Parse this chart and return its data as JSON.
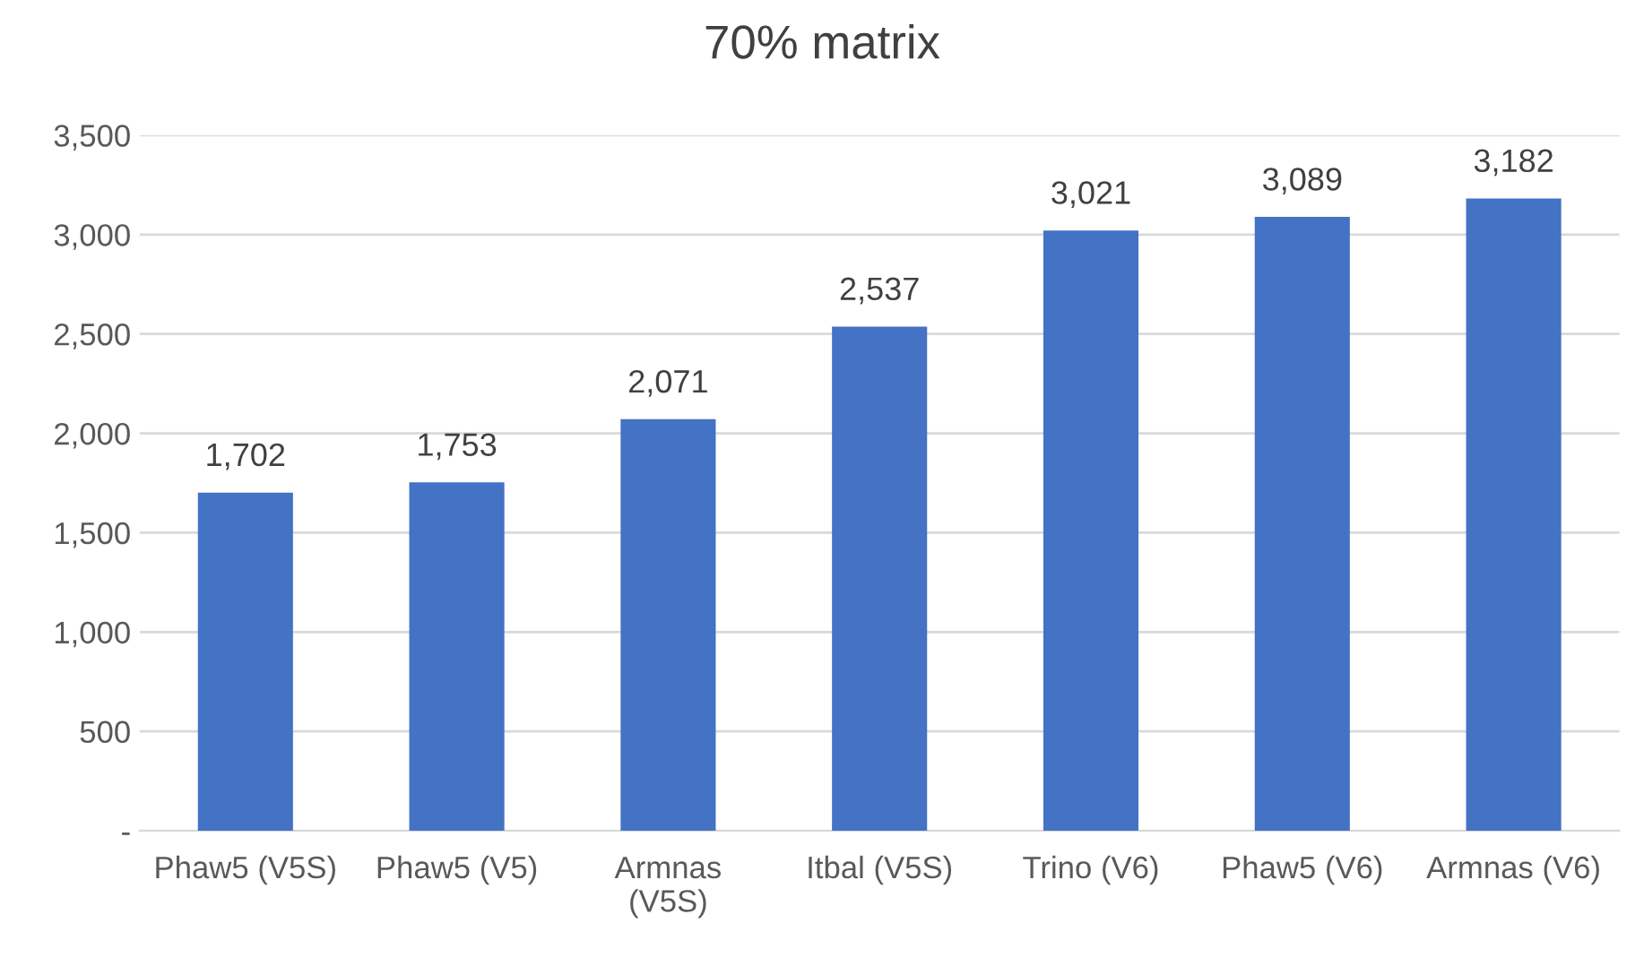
{
  "chart_data": {
    "type": "bar",
    "title": "70% matrix",
    "categories": [
      "Phaw5 (V5S)",
      "Phaw5 (V5)",
      "Armnas (V5S)",
      "Itbal (V5S)",
      "Trino (V6)",
      "Phaw5 (V6)",
      "Armnas (V6)"
    ],
    "values": [
      1702,
      1753,
      2071,
      2537,
      3021,
      3089,
      3182
    ],
    "value_labels": [
      "1,702",
      "1,753",
      "2,071",
      "2,537",
      "3,021",
      "3,089",
      "3,182"
    ],
    "color": "#4472c4",
    "ylim": [
      0,
      3500
    ],
    "yticks": [
      {
        "value": 0,
        "label": "-"
      },
      {
        "value": 500,
        "label": "500"
      },
      {
        "value": 1000,
        "label": "1,000"
      },
      {
        "value": 1500,
        "label": "1,500"
      },
      {
        "value": 2000,
        "label": "2,000"
      },
      {
        "value": 2500,
        "label": "2,500"
      },
      {
        "value": 3000,
        "label": "3,000"
      },
      {
        "value": 3500,
        "label": "3,500"
      }
    ],
    "grid": "y",
    "legend": false
  }
}
